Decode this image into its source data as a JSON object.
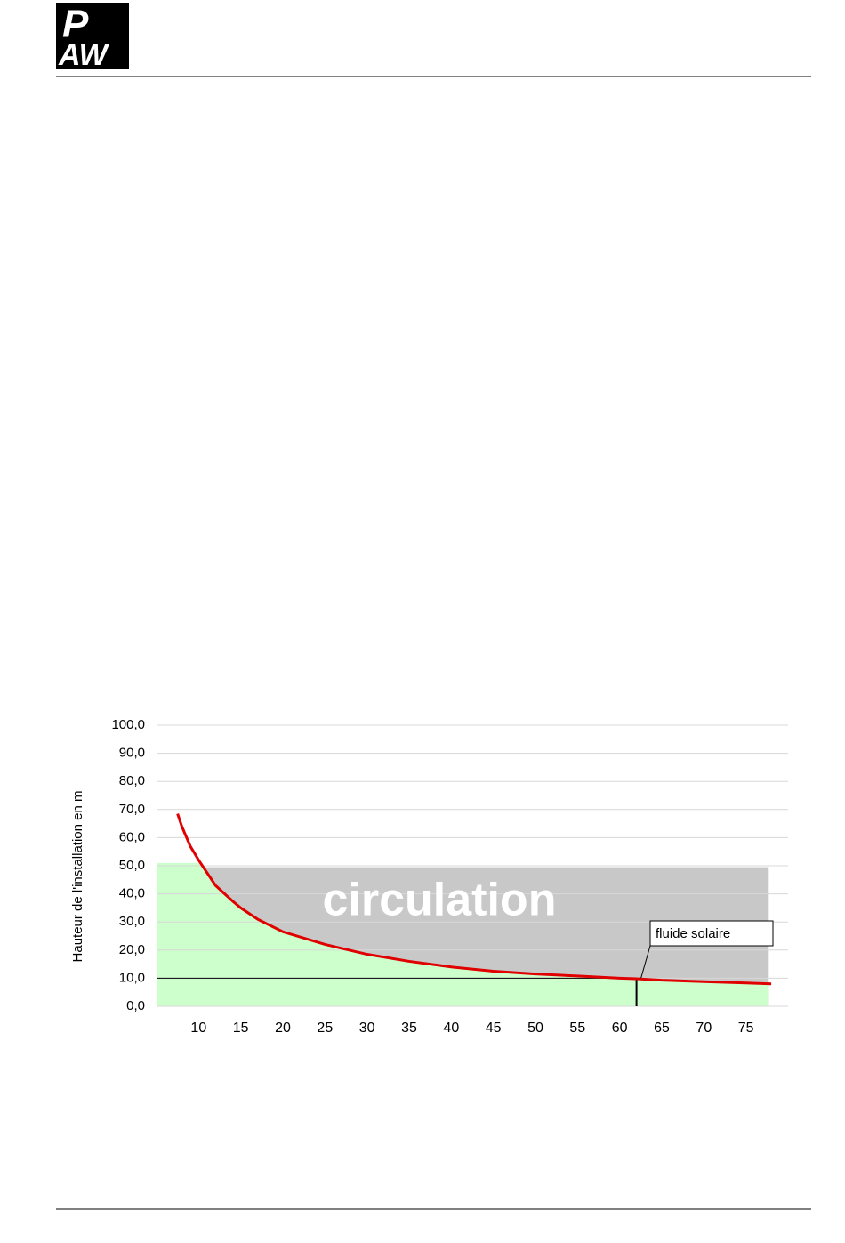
{
  "logo": {
    "top": "P",
    "bottom": "AW"
  },
  "chart_data": {
    "type": "line",
    "ylabel": "Hauteur de l'installation en m",
    "x": [
      7.5,
      8,
      9,
      10,
      12,
      14,
      15,
      17,
      20,
      25,
      30,
      35,
      40,
      45,
      50,
      55,
      60,
      62,
      65,
      70,
      75,
      78
    ],
    "series": [
      {
        "name": null,
        "color": "#e00000",
        "values": [
          68.5,
          64,
          57,
          52,
          43,
          37.5,
          35,
          31,
          26.5,
          22,
          18.5,
          16,
          14,
          12.5,
          11.5,
          10.8,
          10,
          9.8,
          9.3,
          8.8,
          8.3,
          8
        ]
      }
    ],
    "xlim": [
      5,
      80
    ],
    "ylim": [
      0,
      100
    ],
    "xticks": [
      10,
      15,
      20,
      25,
      30,
      35,
      40,
      45,
      50,
      55,
      60,
      65,
      70,
      75
    ],
    "yticks": [
      {
        "value": 0,
        "label": "0,0"
      },
      {
        "value": 10,
        "label": "10,0"
      },
      {
        "value": 20,
        "label": "20,0"
      },
      {
        "value": 30,
        "label": "30,0"
      },
      {
        "value": 40,
        "label": "40,0"
      },
      {
        "value": 50,
        "label": "50,0"
      },
      {
        "value": 60,
        "label": "60,0"
      },
      {
        "value": 70,
        "label": "70,0"
      },
      {
        "value": 80,
        "label": "80,0"
      },
      {
        "value": 90,
        "label": "90,0"
      },
      {
        "value": 100,
        "label": "100,0"
      }
    ],
    "grid": true,
    "regions": {
      "circulation_label": "circulation",
      "circulation_color": "#c8c8c8",
      "circulation_top": 49.5,
      "fluid_color": "#ccffcc",
      "fluid_top": 51,
      "x_end": 77.6
    },
    "marker": {
      "x": 62,
      "y": 10,
      "label": "fluide solaire"
    }
  }
}
